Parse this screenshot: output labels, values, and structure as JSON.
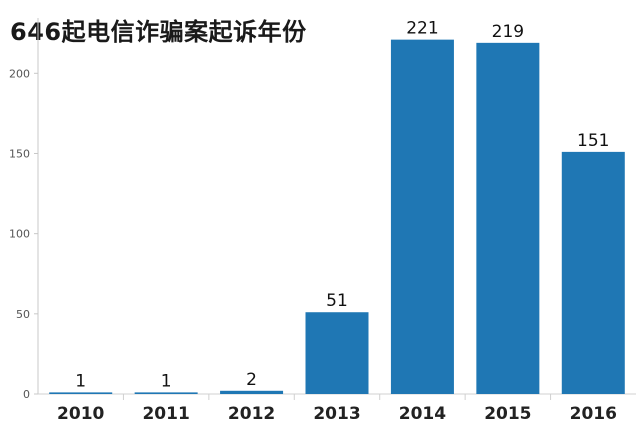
{
  "chart_data": {
    "type": "bar",
    "title": "646起电信诈骗案起诉年份",
    "categories": [
      "2010",
      "2011",
      "2012",
      "2013",
      "2014",
      "2015",
      "2016"
    ],
    "values": [
      1,
      1,
      2,
      51,
      221,
      219,
      151
    ],
    "ylim": [
      0,
      232
    ],
    "yticks": [
      0,
      50,
      100,
      150,
      200
    ],
    "grid": false,
    "legend": "none",
    "bar_color": "#1f77b4"
  }
}
